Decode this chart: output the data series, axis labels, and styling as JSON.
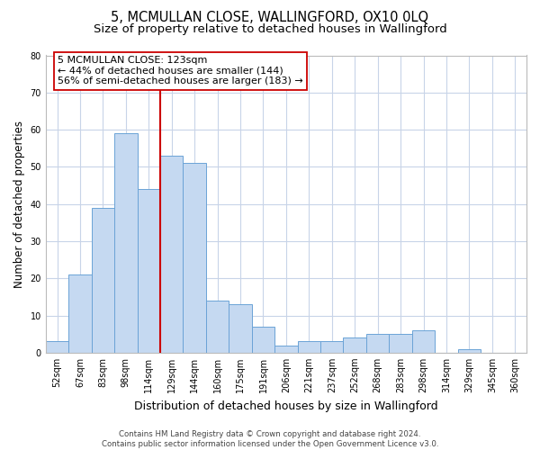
{
  "title": "5, MCMULLAN CLOSE, WALLINGFORD, OX10 0LQ",
  "subtitle": "Size of property relative to detached houses in Wallingford",
  "xlabel": "Distribution of detached houses by size in Wallingford",
  "ylabel": "Number of detached properties",
  "bin_labels": [
    "52sqm",
    "67sqm",
    "83sqm",
    "98sqm",
    "114sqm",
    "129sqm",
    "144sqm",
    "160sqm",
    "175sqm",
    "191sqm",
    "206sqm",
    "221sqm",
    "237sqm",
    "252sqm",
    "268sqm",
    "283sqm",
    "298sqm",
    "314sqm",
    "329sqm",
    "345sqm",
    "360sqm"
  ],
  "bar_heights": [
    3,
    21,
    39,
    59,
    44,
    53,
    51,
    14,
    13,
    7,
    2,
    3,
    3,
    4,
    5,
    5,
    6,
    0,
    1,
    0,
    0
  ],
  "bar_color": "#c5d9f1",
  "bar_edge_color": "#6ba3d6",
  "vline_color": "#cc0000",
  "annotation_line1": "5 MCMULLAN CLOSE: 123sqm",
  "annotation_line2": "← 44% of detached houses are smaller (144)",
  "annotation_line3": "56% of semi-detached houses are larger (183) →",
  "ylim": [
    0,
    80
  ],
  "yticks": [
    0,
    10,
    20,
    30,
    40,
    50,
    60,
    70,
    80
  ],
  "footnote": "Contains HM Land Registry data © Crown copyright and database right 2024.\nContains public sector information licensed under the Open Government Licence v3.0.",
  "bg_color": "#ffffff",
  "grid_color": "#c8d4e8",
  "title_fontsize": 10.5,
  "subtitle_fontsize": 9.5,
  "ylabel_fontsize": 8.5,
  "xlabel_fontsize": 9,
  "tick_fontsize": 7,
  "annotation_fontsize": 8,
  "footnote_fontsize": 6.2
}
